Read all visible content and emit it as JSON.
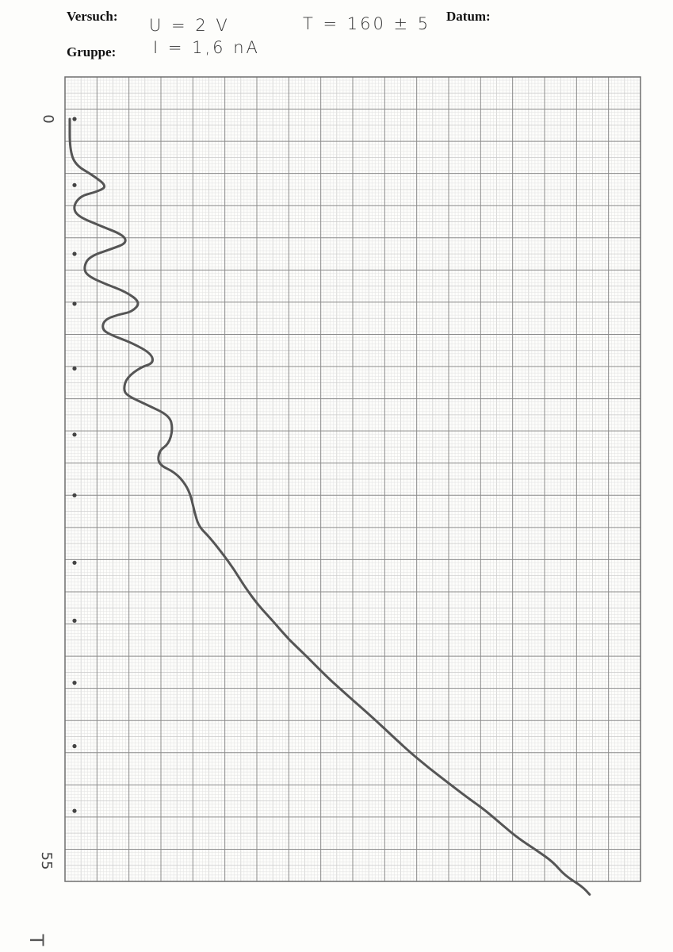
{
  "header": {
    "versuch_label": "Versuch:",
    "gruppe_label": "Gruppe:",
    "datum_label": "Datum:",
    "note_u": "U = 2 V",
    "note_i": "I = 1,6 nA",
    "note_t": "T = 160 ± 5"
  },
  "margin_note": "T",
  "chart_data": {
    "type": "line",
    "title": "",
    "xlabel": "",
    "ylabel": "",
    "axis_labels": {
      "start": "0",
      "end": "55"
    },
    "grid": true,
    "markers_y": [
      0,
      4.9,
      10.0,
      13.7,
      18.5,
      23.4,
      27.9,
      32.9,
      37.2,
      41.8,
      46.5,
      51.3
    ],
    "series": [
      {
        "points": [
          [
            0,
            0
          ],
          [
            0,
            2.2
          ],
          [
            0.5,
            3.4
          ],
          [
            2.2,
            4.2
          ],
          [
            3.5,
            5.0
          ],
          [
            2.5,
            5.4
          ],
          [
            1.0,
            5.7
          ],
          [
            0.3,
            6.5
          ],
          [
            0.7,
            7.2
          ],
          [
            2.8,
            7.9
          ],
          [
            5.0,
            8.6
          ],
          [
            5.3,
            9.2
          ],
          [
            4.0,
            9.6
          ],
          [
            1.8,
            10.2
          ],
          [
            1.3,
            11.0
          ],
          [
            1.6,
            11.6
          ],
          [
            3.2,
            12.2
          ],
          [
            5.2,
            12.8
          ],
          [
            6.6,
            13.6
          ],
          [
            5.8,
            14.3
          ],
          [
            4.5,
            14.5
          ],
          [
            3.2,
            14.9
          ],
          [
            3.0,
            15.6
          ],
          [
            3.8,
            16.0
          ],
          [
            5.8,
            16.6
          ],
          [
            7.6,
            17.4
          ],
          [
            7.8,
            18.1
          ],
          [
            6.6,
            18.4
          ],
          [
            5.3,
            19.2
          ],
          [
            5.0,
            20.0
          ],
          [
            5.3,
            20.5
          ],
          [
            7.2,
            21.2
          ],
          [
            9.3,
            22.0
          ],
          [
            9.6,
            23.0
          ],
          [
            9.2,
            24.1
          ],
          [
            8.3,
            24.6
          ],
          [
            8.2,
            25.6
          ],
          [
            9.8,
            26.2
          ],
          [
            10.8,
            27.1
          ],
          [
            11.3,
            28.0
          ],
          [
            11.6,
            29.1
          ],
          [
            12.0,
            30.2
          ],
          [
            13.0,
            31.0
          ],
          [
            14.2,
            32.2
          ],
          [
            15.3,
            33.4
          ],
          [
            16.3,
            34.7
          ],
          [
            17.6,
            36.1
          ],
          [
            19.0,
            37.3
          ],
          [
            20.4,
            38.6
          ],
          [
            22.0,
            39.8
          ],
          [
            23.6,
            41.1
          ],
          [
            25.1,
            42.2
          ],
          [
            26.8,
            43.4
          ],
          [
            28.5,
            44.6
          ],
          [
            30.1,
            45.8
          ],
          [
            31.6,
            46.9
          ],
          [
            33.4,
            48.1
          ],
          [
            35.2,
            49.2
          ],
          [
            37.0,
            50.3
          ],
          [
            38.6,
            51.2
          ],
          [
            40.2,
            52.3
          ],
          [
            41.7,
            53.3
          ],
          [
            43.6,
            54.3
          ],
          [
            45.0,
            55.1
          ],
          [
            46.1,
            56.1
          ],
          [
            47.7,
            56.9
          ],
          [
            48.4,
            57.5
          ]
        ]
      }
    ]
  }
}
